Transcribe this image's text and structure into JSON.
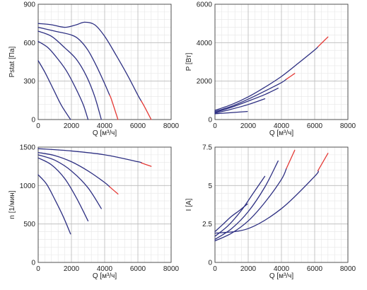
{
  "colors": {
    "series": "#2d2f82",
    "overload": "#e53935"
  },
  "chart_data": [
    {
      "type": "line",
      "xlabel": "Q [м³/ч]",
      "ylabel": "Pstat [Па]",
      "xlim": [
        0,
        8000
      ],
      "ylim": [
        0,
        900
      ],
      "xticks": [
        0,
        2000,
        4000,
        6000,
        8000
      ],
      "yticks": [
        0,
        300,
        600,
        900
      ],
      "grid": true,
      "series": [
        {
          "points": [
            [
              0,
              460
            ],
            [
              400,
              370
            ],
            [
              900,
              240
            ],
            [
              1400,
              110
            ],
            [
              1950,
              0
            ]
          ]
        },
        {
          "points": [
            [
              0,
              610
            ],
            [
              600,
              560
            ],
            [
              1200,
              470
            ],
            [
              1700,
              380
            ],
            [
              2200,
              260
            ],
            [
              2700,
              120
            ],
            [
              3000,
              0
            ]
          ]
        },
        {
          "points": [
            [
              0,
              690
            ],
            [
              800,
              650
            ],
            [
              1600,
              560
            ],
            [
              2300,
              470
            ],
            [
              2900,
              340
            ],
            [
              3400,
              180
            ],
            [
              3800,
              0
            ]
          ]
        },
        {
          "points": [
            [
              0,
              720
            ],
            [
              1000,
              690
            ],
            [
              2000,
              660
            ],
            [
              2500,
              620
            ],
            [
              3000,
              540
            ],
            [
              3500,
              420
            ],
            [
              4000,
              280
            ],
            [
              4400,
              160
            ],
            [
              4800,
              0
            ]
          ],
          "overload_from_x": 4300
        },
        {
          "points": [
            [
              0,
              750
            ],
            [
              800,
              740
            ],
            [
              1600,
              720
            ],
            [
              2300,
              740
            ],
            [
              2800,
              760
            ],
            [
              3400,
              740
            ],
            [
              4000,
              650
            ],
            [
              4700,
              500
            ],
            [
              5400,
              340
            ],
            [
              6000,
              190
            ],
            [
              6400,
              100
            ],
            [
              6800,
              0
            ]
          ],
          "overload_from_x": 6200
        }
      ]
    },
    {
      "type": "line",
      "xlabel": "Q [м³/ч]",
      "ylabel": "P [Вт]",
      "xlim": [
        0,
        8000
      ],
      "ylim": [
        0,
        6000
      ],
      "xticks": [
        0,
        2000,
        4000,
        6000,
        8000
      ],
      "yticks": [
        0,
        2000,
        4000,
        6000
      ],
      "grid": true,
      "series": [
        {
          "points": [
            [
              0,
              300
            ],
            [
              1000,
              360
            ],
            [
              1950,
              420
            ]
          ]
        },
        {
          "points": [
            [
              0,
              330
            ],
            [
              1000,
              540
            ],
            [
              2000,
              780
            ],
            [
              3000,
              1080
            ]
          ]
        },
        {
          "points": [
            [
              0,
              370
            ],
            [
              1000,
              640
            ],
            [
              2000,
              960
            ],
            [
              3000,
              1300
            ],
            [
              3800,
              1630
            ]
          ]
        },
        {
          "points": [
            [
              0,
              420
            ],
            [
              1000,
              690
            ],
            [
              2000,
              1060
            ],
            [
              3000,
              1480
            ],
            [
              4000,
              1920
            ],
            [
              4800,
              2400
            ]
          ],
          "overload_from_x": 4300
        },
        {
          "points": [
            [
              0,
              480
            ],
            [
              1000,
              780
            ],
            [
              2000,
              1180
            ],
            [
              3000,
              1680
            ],
            [
              4000,
              2240
            ],
            [
              5000,
              2920
            ],
            [
              6000,
              3620
            ],
            [
              6800,
              4300
            ]
          ],
          "overload_from_x": 6200
        }
      ]
    },
    {
      "type": "line",
      "xlabel": "Q [м³/ч]",
      "ylabel": "n [1/мин]",
      "xlim": [
        0,
        8000
      ],
      "ylim": [
        0,
        1500
      ],
      "xticks": [
        0,
        2000,
        4000,
        6000,
        8000
      ],
      "yticks": [
        0,
        500,
        1000,
        1500
      ],
      "grid": true,
      "series": [
        {
          "points": [
            [
              0,
              1140
            ],
            [
              500,
              1020
            ],
            [
              1000,
              820
            ],
            [
              1500,
              600
            ],
            [
              1950,
              370
            ]
          ]
        },
        {
          "points": [
            [
              0,
              1360
            ],
            [
              800,
              1270
            ],
            [
              1600,
              1090
            ],
            [
              2300,
              840
            ],
            [
              3000,
              540
            ]
          ]
        },
        {
          "points": [
            [
              0,
              1400
            ],
            [
              1000,
              1330
            ],
            [
              2000,
              1190
            ],
            [
              3000,
              970
            ],
            [
              3800,
              700
            ]
          ]
        },
        {
          "points": [
            [
              0,
              1430
            ],
            [
              1000,
              1390
            ],
            [
              2000,
              1310
            ],
            [
              3000,
              1190
            ],
            [
              4000,
              1040
            ],
            [
              4800,
              890
            ]
          ],
          "overload_from_x": 4300
        },
        {
          "points": [
            [
              0,
              1480
            ],
            [
              2000,
              1450
            ],
            [
              4000,
              1400
            ],
            [
              6000,
              1310
            ],
            [
              6800,
              1250
            ]
          ],
          "overload_from_x": 6200
        }
      ]
    },
    {
      "type": "line",
      "xlabel": "Q [м³/ч]",
      "ylabel": "I [A]",
      "xlim": [
        0,
        8000
      ],
      "ylim": [
        0,
        7.5
      ],
      "xticks": [
        0,
        2000,
        4000,
        6000,
        8000
      ],
      "yticks": [
        0,
        2.5,
        5,
        7.5
      ],
      "ytick_labels": [
        "0",
        "2.5",
        "5",
        "7.5"
      ],
      "grid": true,
      "series": [
        {
          "points": [
            [
              0,
              2.0
            ],
            [
              500,
              2.5
            ],
            [
              1000,
              3.0
            ],
            [
              1500,
              3.4
            ],
            [
              1950,
              3.8
            ]
          ]
        },
        {
          "points": [
            [
              0,
              1.7
            ],
            [
              800,
              2.4
            ],
            [
              1600,
              3.4
            ],
            [
              2300,
              4.5
            ],
            [
              3000,
              5.6
            ]
          ]
        },
        {
          "points": [
            [
              0,
              1.5
            ],
            [
              1000,
              2.2
            ],
            [
              2000,
              3.3
            ],
            [
              3000,
              4.9
            ],
            [
              3800,
              6.6
            ]
          ]
        },
        {
          "points": [
            [
              0,
              1.4
            ],
            [
              1000,
              1.9
            ],
            [
              2000,
              2.7
            ],
            [
              3000,
              3.9
            ],
            [
              4000,
              5.4
            ],
            [
              4800,
              7.3
            ]
          ],
          "overload_from_x": 4300
        },
        {
          "points": [
            [
              0,
              1.9
            ],
            [
              2000,
              2.2
            ],
            [
              4000,
              3.5
            ],
            [
              6000,
              5.6
            ],
            [
              6800,
              7.1
            ]
          ],
          "overload_from_x": 6200
        }
      ]
    }
  ]
}
